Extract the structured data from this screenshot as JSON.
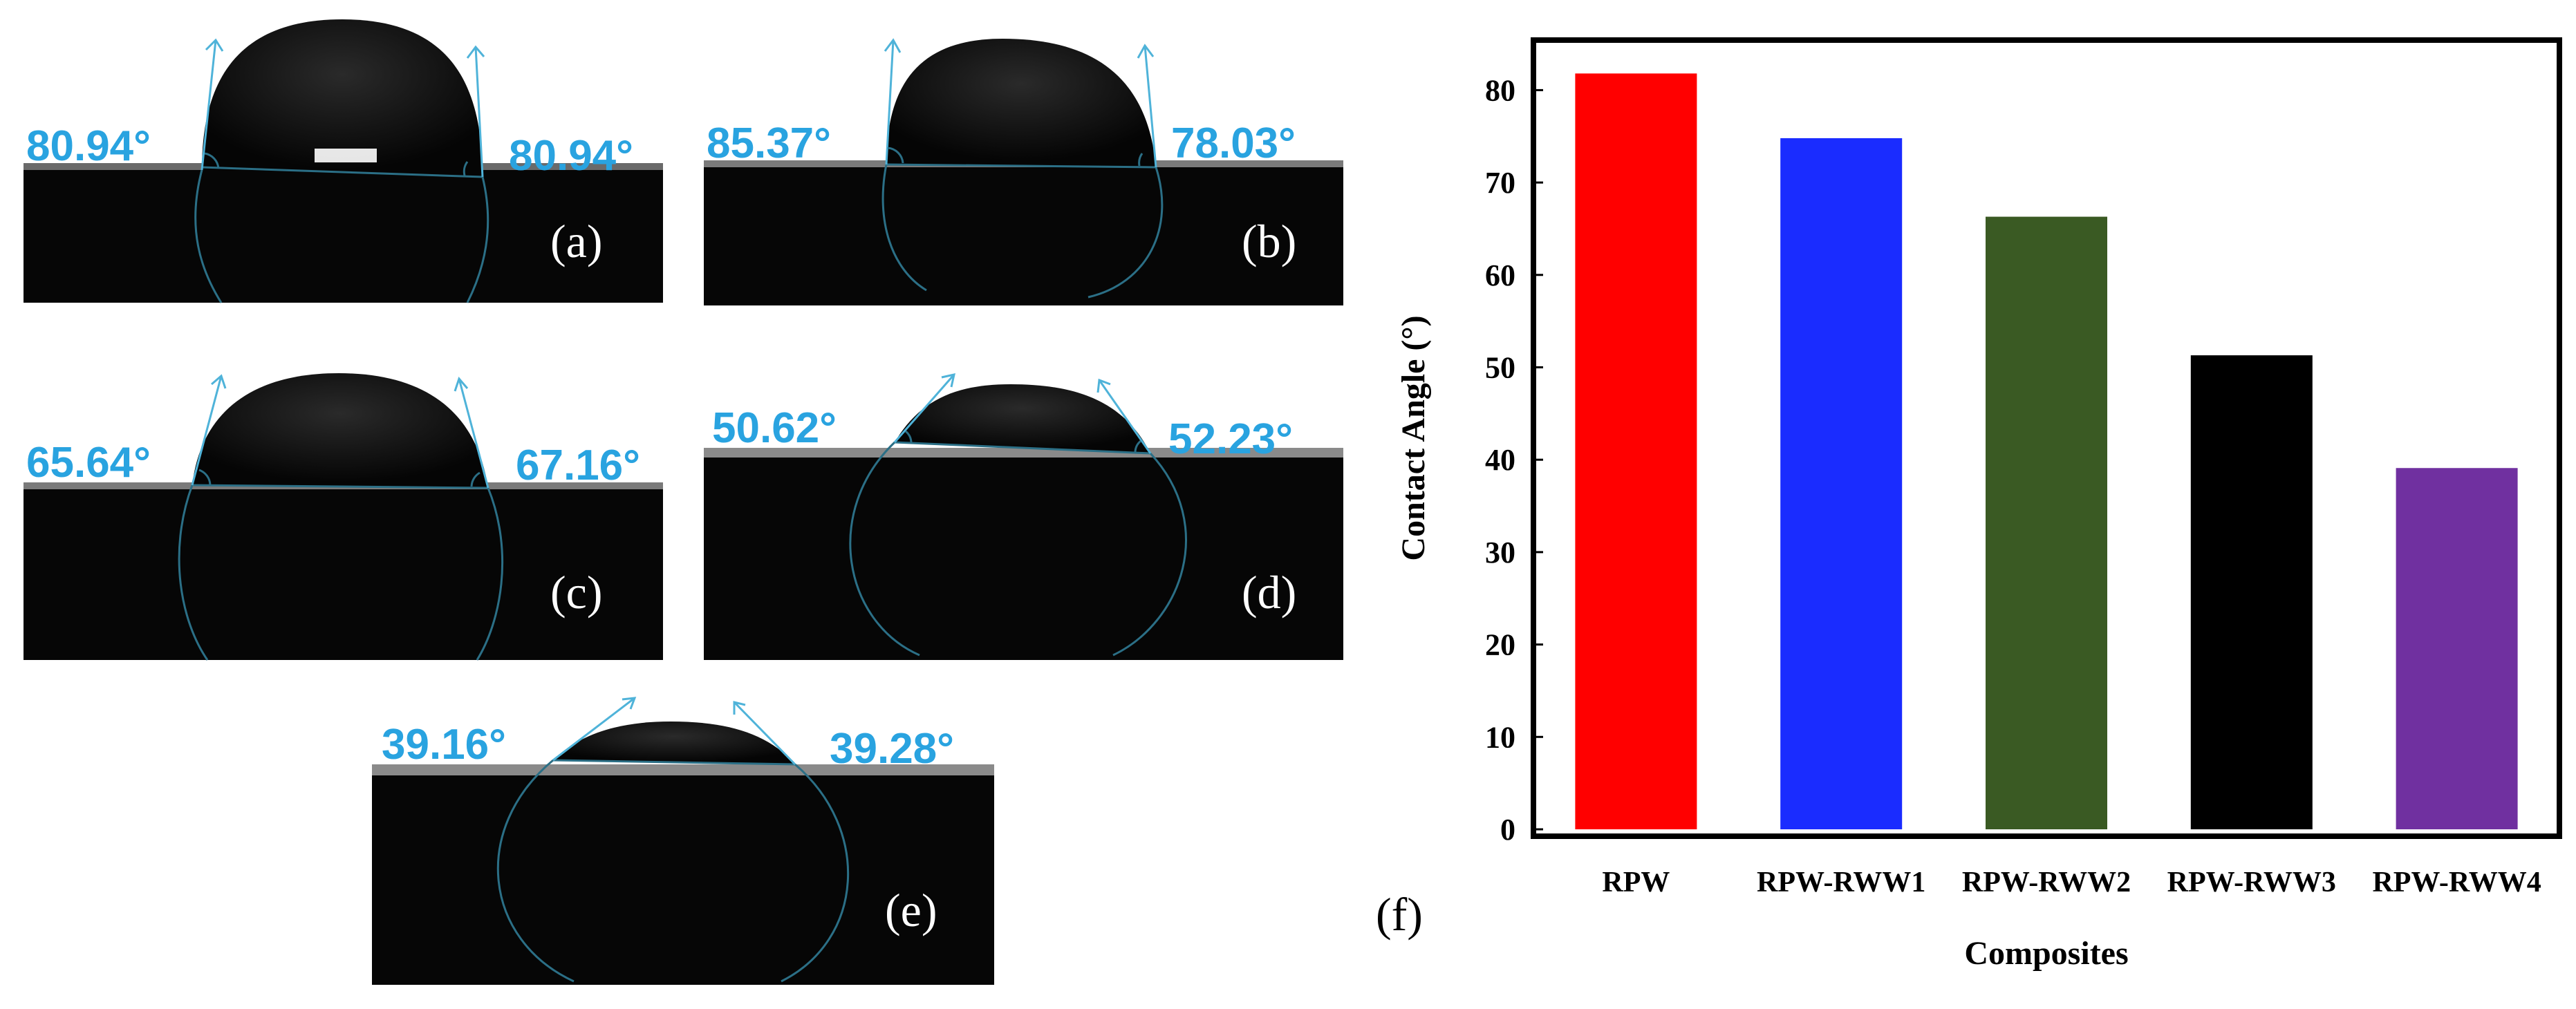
{
  "panels": [
    {
      "label": "(a)",
      "left_angle": "80.94°",
      "right_angle": "80.94°"
    },
    {
      "label": "(b)",
      "left_angle": "85.37°",
      "right_angle": "78.03°"
    },
    {
      "label": "(c)",
      "left_angle": "65.64°",
      "right_angle": "67.16°"
    },
    {
      "label": "(d)",
      "left_angle": "50.62°",
      "right_angle": "52.23°"
    },
    {
      "label": "(e)",
      "left_angle": "39.16°",
      "right_angle": "39.28°"
    }
  ],
  "chart_panel_label": "(f)",
  "colors": {
    "angle_text": "#29a3e0",
    "fit_line": "#2b6f86",
    "bars": [
      "#ff0000",
      "#1a2cff",
      "#3a5a23",
      "#000000",
      "#7030a0"
    ]
  },
  "chart_data": {
    "type": "bar",
    "title": "",
    "xlabel": "Composites",
    "ylabel": "Contact Angle (°)",
    "categories": [
      "RPW",
      "RPW-RWW1",
      "RPW-RWW2",
      "RPW-RWW3",
      "RPW-RWW4"
    ],
    "values": [
      81.8,
      74.8,
      66.3,
      51.3,
      39.1
    ],
    "ylim": [
      0,
      85
    ],
    "yticks": [
      0,
      10,
      20,
      30,
      40,
      50,
      60,
      70,
      80
    ],
    "grid": false,
    "legend": "none"
  }
}
